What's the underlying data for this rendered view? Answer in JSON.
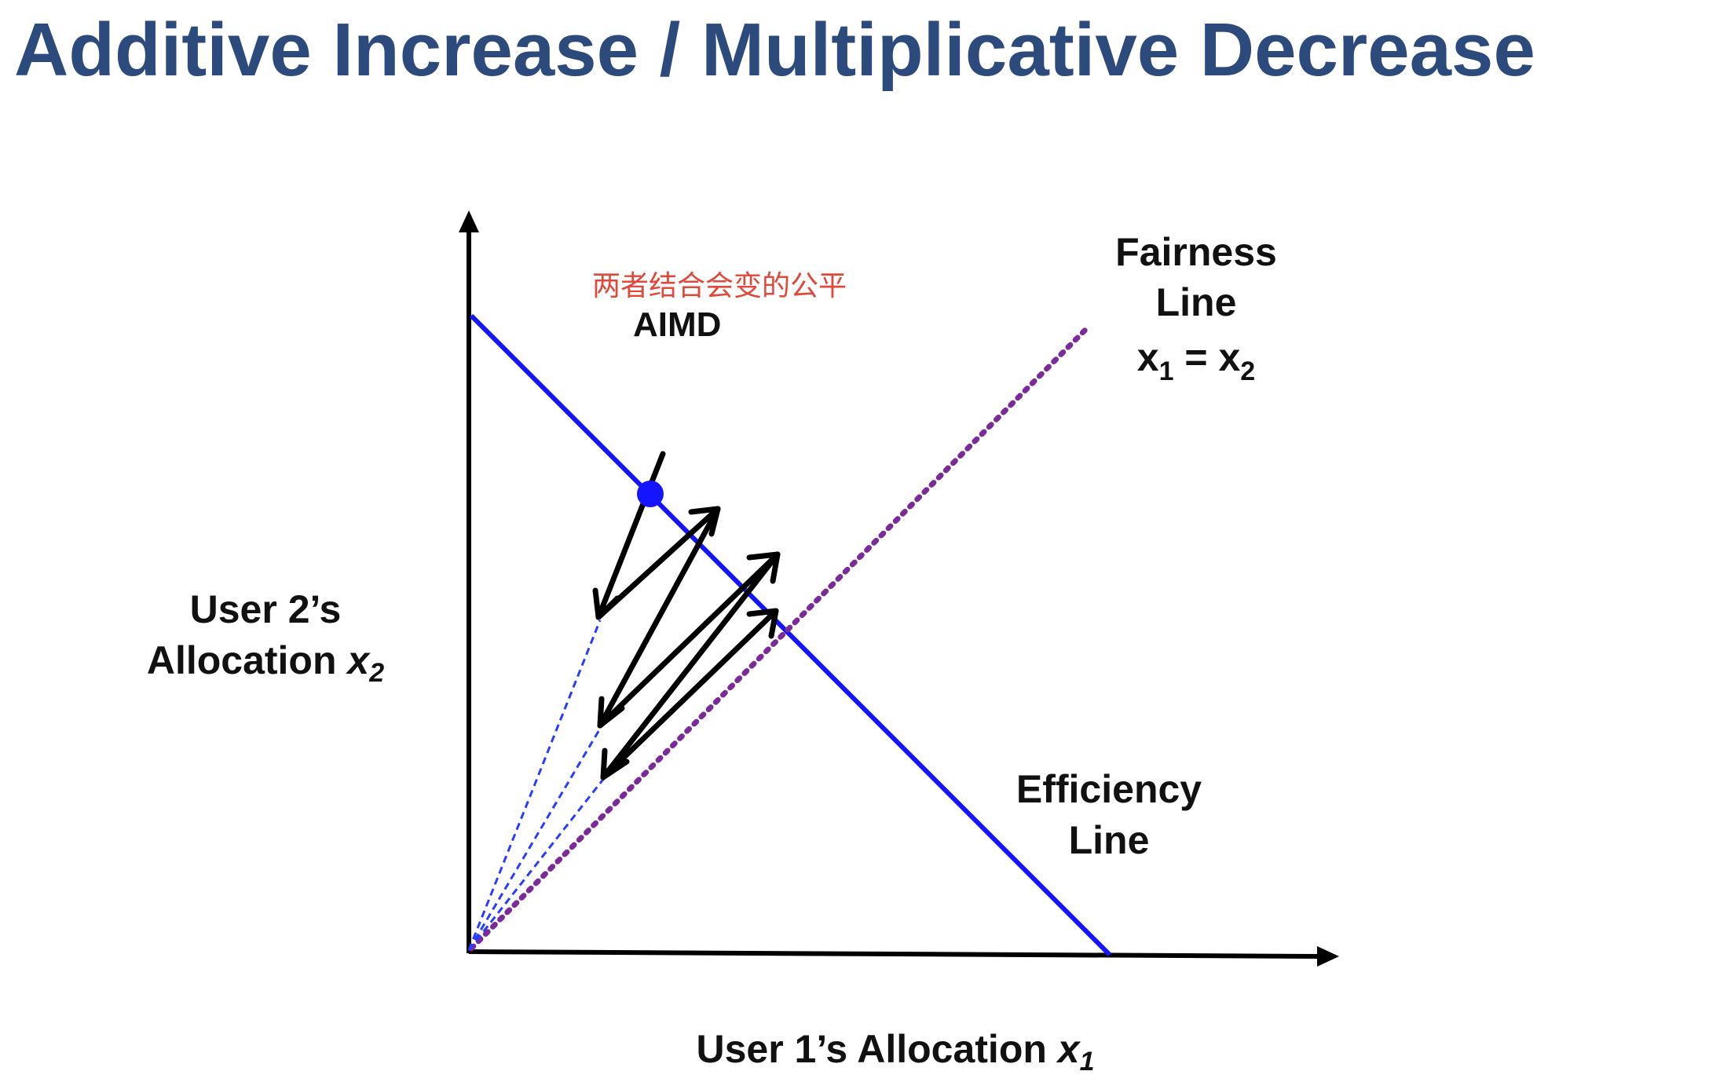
{
  "title": "Additive Increase / Multiplicative Decrease",
  "annotation_cn": "两者结合会变的公平",
  "aimd_label": "AIMD",
  "fairness_label": {
    "line1": "Fairness",
    "line2": "Line",
    "eq_x": "x",
    "eq_sub1": "1",
    "eq_mid": " = x",
    "eq_sub2": "2"
  },
  "efficiency_label": {
    "line1": "Efficiency",
    "line2": "Line"
  },
  "y_axis_label": {
    "line1": "User 2’s",
    "line2_text": "Allocation ",
    "line2_var": "x",
    "line2_sub": "2"
  },
  "x_axis_label": {
    "text": "User 1’s Allocation ",
    "var": "x",
    "sub": "1"
  },
  "colors": {
    "title": "#2d4a7c",
    "efficiency_line": "#1414ff",
    "fairness_line": "#7b2a9a",
    "dashed_rays": "#2a3cff",
    "arrows": "#000000",
    "annotation": "#e0483a"
  }
}
